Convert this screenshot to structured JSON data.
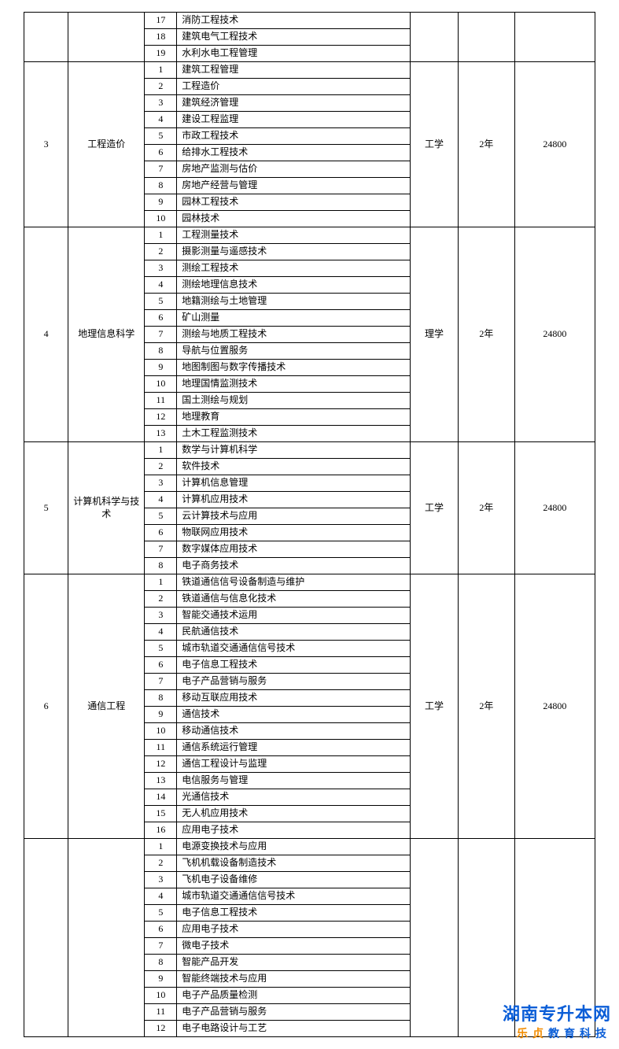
{
  "table": {
    "border_color": "#000000",
    "background": "#ffffff",
    "font_size_pt": 9,
    "header_rows": [
      {
        "num": "17",
        "course": "消防工程技术"
      },
      {
        "num": "18",
        "course": "建筑电气工程技术"
      },
      {
        "num": "19",
        "course": "水利水电工程管理"
      }
    ],
    "groups": [
      {
        "idx": "3",
        "major": "工程造价",
        "category": "工学",
        "duration": "2年",
        "fee": "24800",
        "courses": [
          "建筑工程管理",
          "工程造价",
          "建筑经济管理",
          "建设工程监理",
          "市政工程技术",
          "给排水工程技术",
          "房地产监测与估价",
          "房地产经营与管理",
          "园林工程技术",
          "园林技术"
        ]
      },
      {
        "idx": "4",
        "major": "地理信息科学",
        "category": "理学",
        "duration": "2年",
        "fee": "24800",
        "courses": [
          "工程测量技术",
          "摄影测量与遥感技术",
          "测绘工程技术",
          "测绘地理信息技术",
          "地籍测绘与土地管理",
          "矿山测量",
          "测绘与地质工程技术",
          "导航与位置服务",
          "地图制图与数字传播技术",
          "地理国情监测技术",
          "国土测绘与规划",
          "地理教育",
          "土木工程监测技术"
        ]
      },
      {
        "idx": "5",
        "major": "计算机科学与技术",
        "category": "工学",
        "duration": "2年",
        "fee": "24800",
        "courses": [
          "数学与计算机科学",
          "软件技术",
          "计算机信息管理",
          "计算机应用技术",
          "云计算技术与应用",
          "物联网应用技术",
          "数字媒体应用技术",
          "电子商务技术"
        ]
      },
      {
        "idx": "6",
        "major": "通信工程",
        "category": "工学",
        "duration": "2年",
        "fee": "24800",
        "courses": [
          "铁道通信信号设备制造与维护",
          "铁道通信与信息化技术",
          "智能交通技术运用",
          "民航通信技术",
          "城市轨道交通通信信号技术",
          "电子信息工程技术",
          "电子产品营销与服务",
          "移动互联应用技术",
          "通信技术",
          "移动通信技术",
          "通信系统运行管理",
          "通信工程设计与监理",
          "电信服务与管理",
          "光通信技术",
          "无人机应用技术",
          "应用电子技术"
        ]
      }
    ],
    "trailing_rows": [
      "电源变换技术与应用",
      "飞机机载设备制造技术",
      "飞机电子设备维修",
      "城市轨道交通通信信号技术",
      "电子信息工程技术",
      "应用电子技术",
      "微电子技术",
      "智能产品开发",
      "智能终端技术与应用",
      "电子产品质量检测",
      "电子产品营销与服务",
      "电子电路设计与工艺"
    ]
  },
  "watermark": {
    "line1": "湖南专升本网",
    "line2a": "乐贞",
    "line2b": "教育科技",
    "color_primary": "#0b5ed7",
    "color_accent": "#f28c00"
  }
}
